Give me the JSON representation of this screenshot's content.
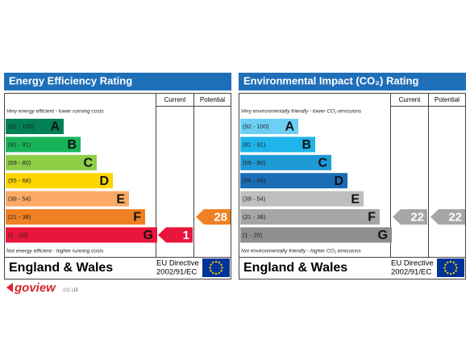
{
  "panels": [
    {
      "title": "Energy Efficiency Rating",
      "header_color": "#1f6fb8",
      "columns": [
        "Current",
        "Potential"
      ],
      "top_note": "Very energy efficient - lower running costs",
      "bottom_note": "Not energy efficient - higher running costs",
      "bands": [
        {
          "range": "(92 - 100)",
          "letter": "A",
          "color": "#008054"
        },
        {
          "range": "(81 - 91)",
          "letter": "B",
          "color": "#19b459"
        },
        {
          "range": "(69 - 80)",
          "letter": "C",
          "color": "#8dce46"
        },
        {
          "range": "(55 - 68)",
          "letter": "D",
          "color": "#ffd500"
        },
        {
          "range": "(39 - 54)",
          "letter": "E",
          "color": "#fcaa65"
        },
        {
          "range": "(21 - 38)",
          "letter": "F",
          "color": "#ef8023"
        },
        {
          "range": "(1 - 20)",
          "letter": "G",
          "color": "#e9153b"
        }
      ],
      "current": 1,
      "potential": 28,
      "region": "England & Wales",
      "directive": [
        "EU Directive",
        "2002/91/EC"
      ]
    },
    {
      "title": "Environmental Impact (CO₂) Rating",
      "header_color": "#1f6fb8",
      "columns": [
        "Current",
        "Potential"
      ],
      "top_note": "Very environmentally friendly - lower CO₂ emissions",
      "bottom_note": "Not environmentally friendly - higher CO₂ emissions",
      "bands": [
        {
          "range": "(92 - 100)",
          "letter": "A",
          "color": "#6dcff6"
        },
        {
          "range": "(81 - 91)",
          "letter": "B",
          "color": "#1fb4ea"
        },
        {
          "range": "(69 - 80)",
          "letter": "C",
          "color": "#1f9ad7"
        },
        {
          "range": "(55 - 68)",
          "letter": "D",
          "color": "#1b6db5"
        },
        {
          "range": "(39 - 54)",
          "letter": "E",
          "color": "#bebebe"
        },
        {
          "range": "(21 - 38)",
          "letter": "F",
          "color": "#a6a6a6"
        },
        {
          "range": "(1 - 20)",
          "letter": "G",
          "color": "#8e8e8e"
        }
      ],
      "current": 22,
      "potential": 22,
      "region": "England & Wales",
      "directive": [
        "EU Directive",
        "2002/91/EC"
      ]
    }
  ],
  "logo": {
    "name": "goview",
    "domain": ".co.uk"
  }
}
